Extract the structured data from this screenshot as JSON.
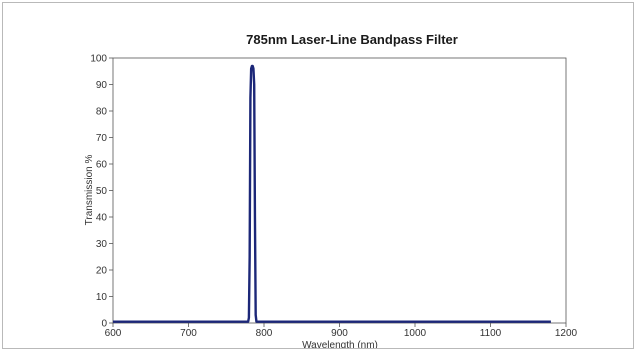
{
  "chart_data": {
    "type": "line",
    "title": "785nm Laser-Line Bandpass Filter",
    "xlabel": "Wavelength (nm)",
    "ylabel": "Transmission %",
    "xlim": [
      600,
      1200
    ],
    "ylim": [
      0,
      100
    ],
    "xticks": [
      600,
      700,
      800,
      900,
      1000,
      1100,
      1200
    ],
    "yticks": [
      0,
      10,
      20,
      30,
      40,
      50,
      60,
      70,
      80,
      90,
      100
    ],
    "grid": false,
    "legend": "none",
    "series": [
      {
        "color": "#1c2778",
        "x": [
          600,
          779,
          780,
          781,
          782,
          783,
          784,
          785,
          786,
          787,
          788,
          789,
          790,
          1180
        ],
        "y": [
          0.5,
          0.5,
          2,
          25,
          85,
          96,
          97,
          97,
          96,
          90,
          40,
          3,
          0.5,
          0.5
        ]
      }
    ]
  }
}
